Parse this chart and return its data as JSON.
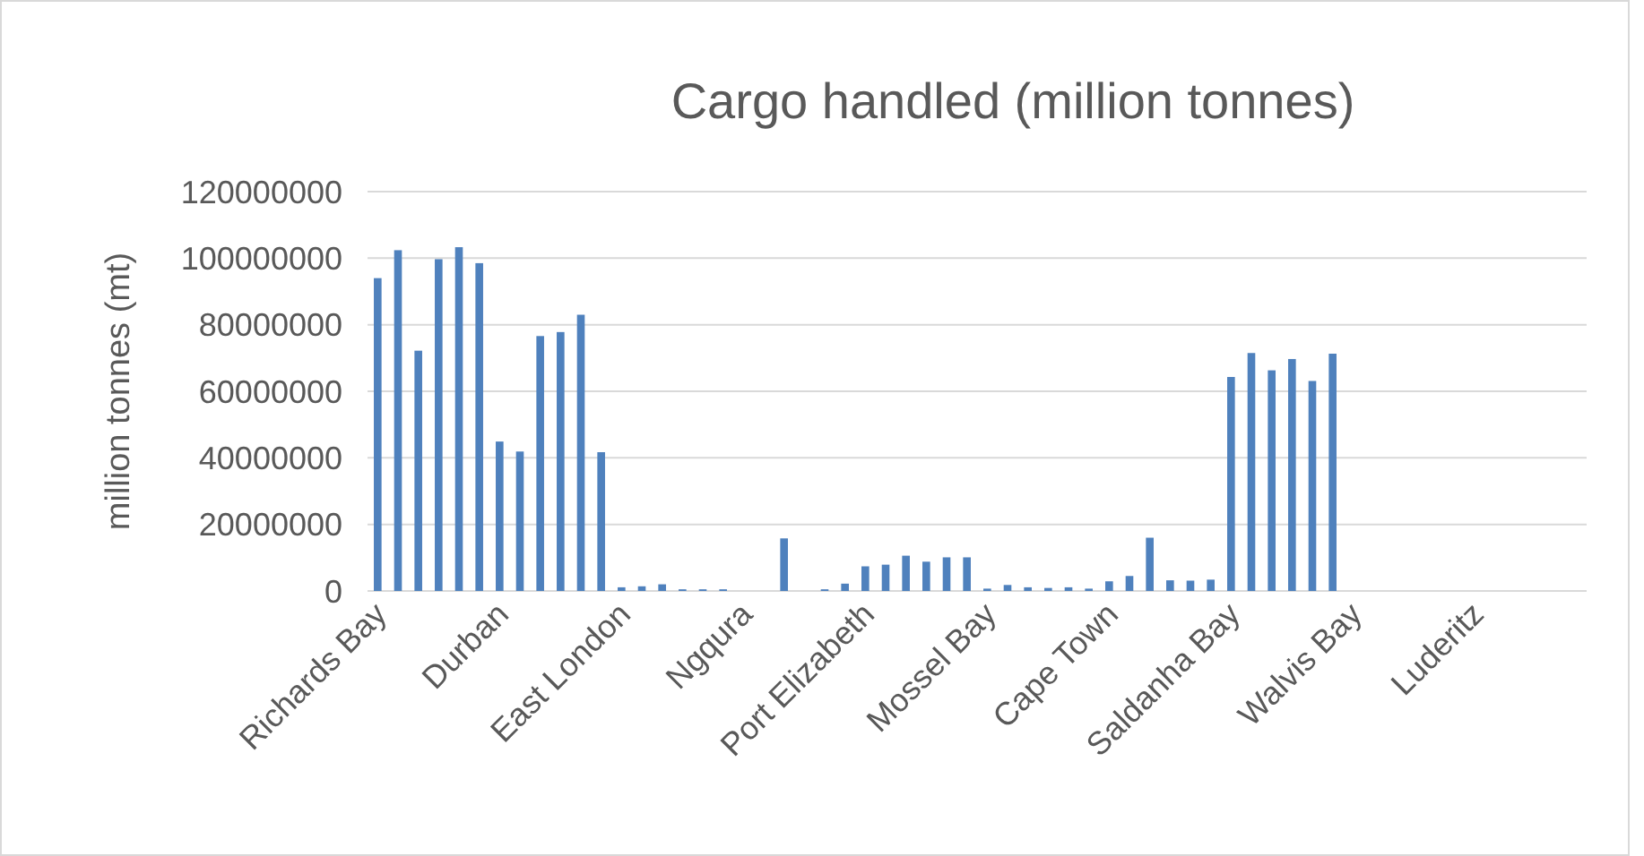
{
  "chart_data": {
    "type": "bar",
    "title": "Cargo handled (million tonnes)",
    "ylabel": "million tonnes (mt)",
    "categories": [
      "Richards Bay",
      null,
      null,
      null,
      null,
      null,
      "Durban",
      null,
      null,
      null,
      null,
      null,
      "East London",
      null,
      null,
      null,
      null,
      null,
      "Ngqura",
      null,
      null,
      null,
      null,
      null,
      "Port Elizabeth",
      null,
      null,
      null,
      null,
      null,
      "Mossel Bay",
      null,
      null,
      null,
      null,
      null,
      "Cape Town",
      null,
      null,
      null,
      null,
      null,
      "Saldanha Bay",
      null,
      null,
      null,
      null,
      null,
      "Walvis Bay",
      null,
      null,
      null,
      null,
      null,
      "Luderitz",
      null,
      null,
      null,
      null,
      null
    ],
    "values": [
      94000000,
      102400000,
      72200000,
      99700000,
      103300000,
      98500000,
      44900000,
      41900000,
      76600000,
      77800000,
      83000000,
      41700000,
      1100000,
      1400000,
      2000000,
      500000,
      500000,
      500000,
      0,
      0,
      15800000,
      0,
      500000,
      2200000,
      7400000,
      7900000,
      10600000,
      8800000,
      10100000,
      10100000,
      700000,
      1800000,
      1100000,
      900000,
      1100000,
      700000,
      2900000,
      4500000,
      16000000,
      3200000,
      3100000,
      3400000,
      64300000,
      71500000,
      66300000,
      69700000,
      63100000,
      71300000,
      0,
      0,
      0,
      0,
      0,
      0,
      0,
      0,
      0,
      0,
      0,
      0
    ],
    "color": "#4f81bd",
    "ylim": [
      0,
      120000000
    ],
    "yticks": [
      0,
      20000000,
      40000000,
      60000000,
      80000000,
      100000000,
      120000000
    ],
    "grid": "y"
  }
}
